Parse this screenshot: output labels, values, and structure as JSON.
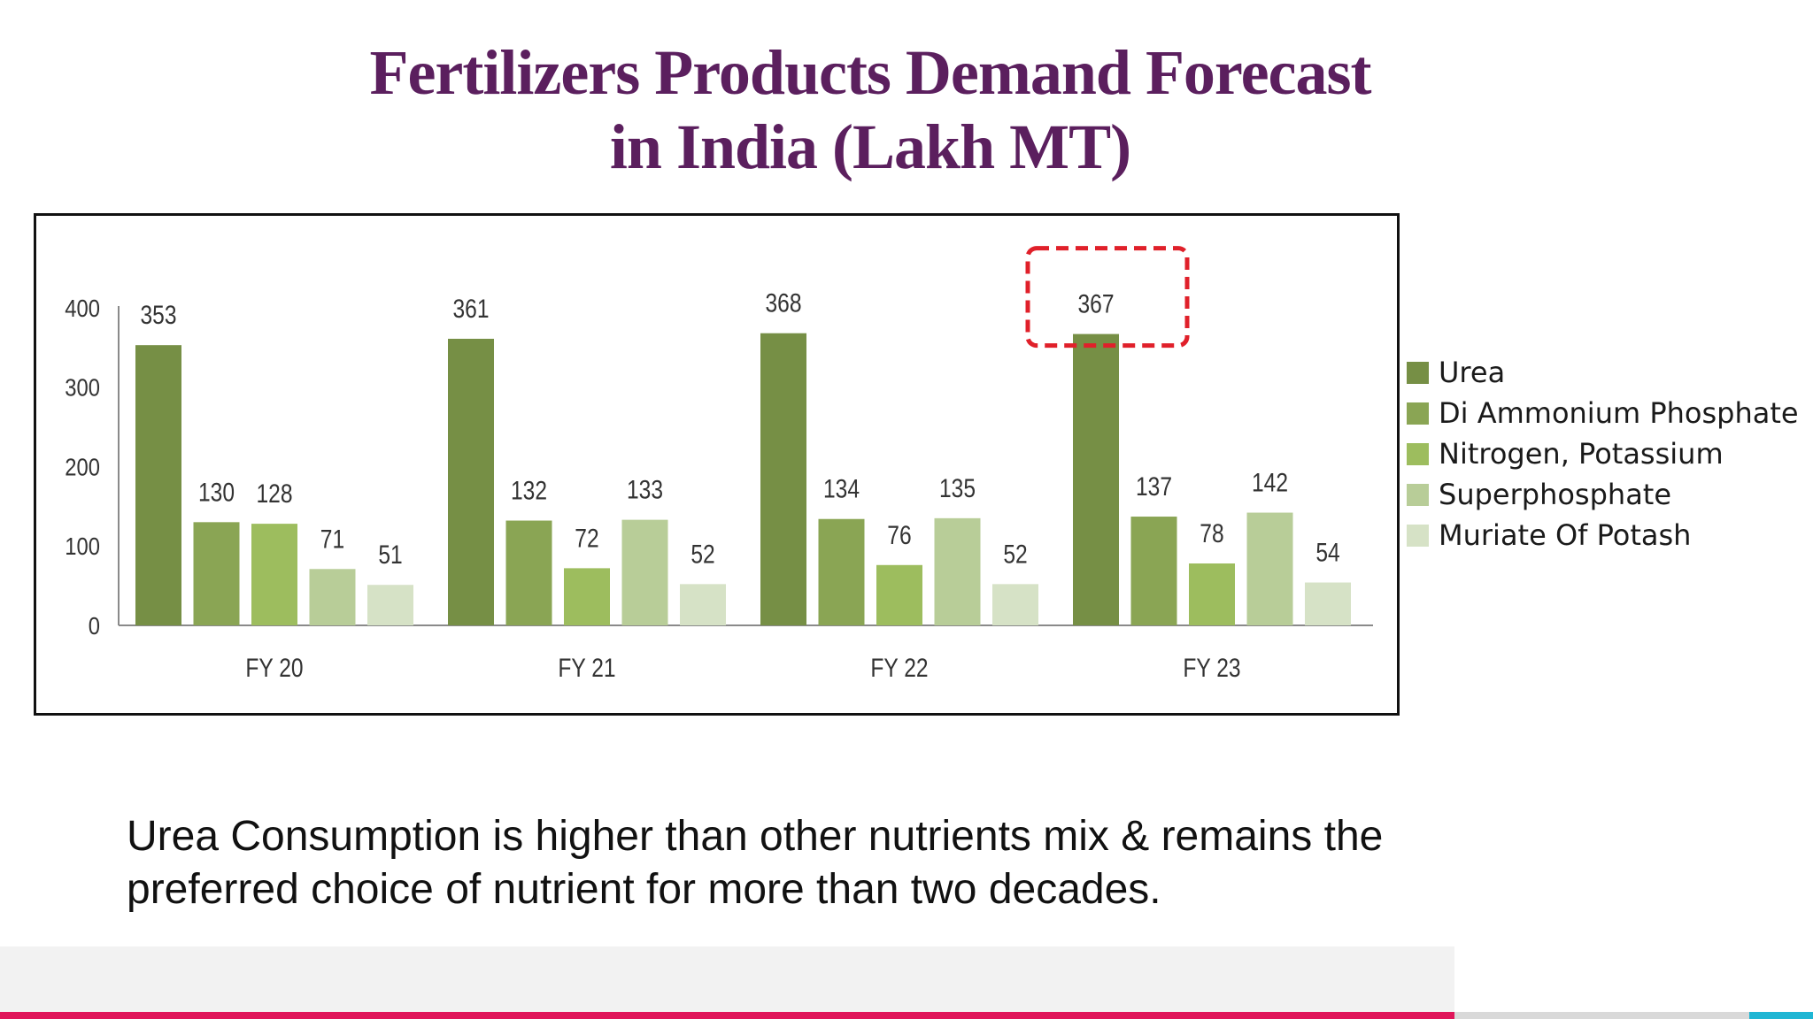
{
  "title_line1": "Fertilizers Products Demand Forecast",
  "title_line2": "in India (Lakh MT)",
  "caption_line1": "Urea Consumption is higher than other nutrients mix & remains the",
  "caption_line2": "preferred choice of nutrient for more than two decades.",
  "colors": {
    "title": "#5b1f5e",
    "highlight_box": "#e0202a",
    "footer_pink": "#e0155a",
    "footer_cyan": "#1fb6d4"
  },
  "chart_data": {
    "type": "bar",
    "categories": [
      "FY 20",
      "FY 21",
      "FY 22",
      "FY 23"
    ],
    "series": [
      {
        "name": "Urea",
        "values": [
          353,
          361,
          368,
          367
        ],
        "color": "#768f45"
      },
      {
        "name": "Di Ammonium Phosphate",
        "values": [
          130,
          132,
          134,
          137
        ],
        "color": "#8aa554"
      },
      {
        "name": "Nitrogen, Potassium",
        "values": [
          128,
          72,
          76,
          78
        ],
        "color": "#9dbd5e"
      },
      {
        "name": "Superphosphate",
        "values": [
          71,
          133,
          135,
          142
        ],
        "color": "#b8cd98"
      },
      {
        "name": "Muriate Of Potash",
        "values": [
          51,
          52,
          52,
          54
        ],
        "color": "#d6e2c6"
      }
    ],
    "ylim": [
      0,
      400
    ],
    "yticks": [
      "0",
      "100",
      "200",
      "300",
      "400"
    ],
    "title": "",
    "xlabel": "",
    "ylabel": "",
    "grid": false,
    "legend": "right",
    "data_labels": true,
    "highlight": {
      "category": "FY 23",
      "series": "Urea",
      "style": "dashed-red-box"
    }
  }
}
